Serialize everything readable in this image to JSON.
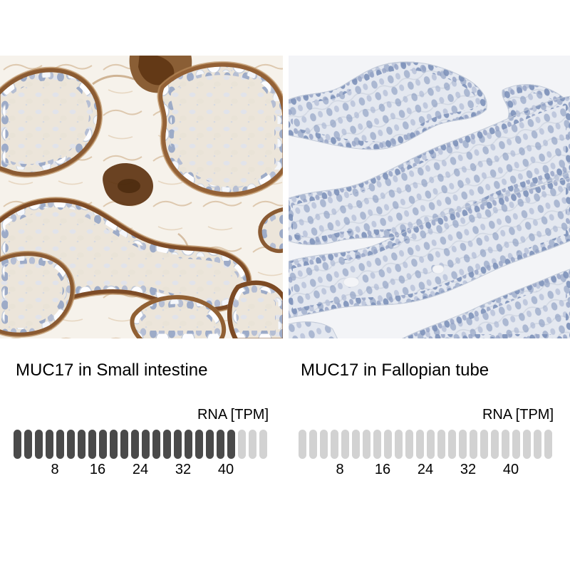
{
  "figure": {
    "panels": [
      {
        "id": "small-intestine",
        "title": "MUC17 in Small intestine",
        "rna_label": "RNA [TPM]",
        "image": {
          "name": "ihc-small-intestine",
          "kind": "immunohistochemistry micrograph",
          "stain_color": "#8a5a32",
          "nuclei_color": "#8fa1c4",
          "background_color": "#f6f2eb"
        }
      },
      {
        "id": "fallopian-tube",
        "title": "MUC17 in Fallopian tube",
        "rna_label": "RNA [TPM]",
        "image": {
          "name": "ihc-fallopian-tube",
          "kind": "immunohistochemistry micrograph",
          "stain_color": "none",
          "nuclei_color": "#8b9cc1",
          "background_color": "#f3f4f7"
        }
      }
    ]
  },
  "chart_data": [
    {
      "type": "bar",
      "subtype": "pill-strip",
      "title": "MUC17 in Small intestine",
      "series_label": "RNA [TPM]",
      "units": "TPM",
      "pill_count": 24,
      "filled_pills": 21,
      "tpm_per_pill": 2,
      "value": 42,
      "xlim": [
        0,
        48
      ],
      "ticks": [
        8,
        16,
        24,
        32,
        40
      ],
      "filled_color": "#4a4a4a",
      "empty_color": "#d2d2d2"
    },
    {
      "type": "bar",
      "subtype": "pill-strip",
      "title": "MUC17 in Fallopian tube",
      "series_label": "RNA [TPM]",
      "units": "TPM",
      "pill_count": 24,
      "filled_pills": 0,
      "tpm_per_pill": 2,
      "value": 0,
      "xlim": [
        0,
        48
      ],
      "ticks": [
        8,
        16,
        24,
        32,
        40
      ],
      "filled_color": "#4a4a4a",
      "empty_color": "#d2d2d2"
    }
  ]
}
